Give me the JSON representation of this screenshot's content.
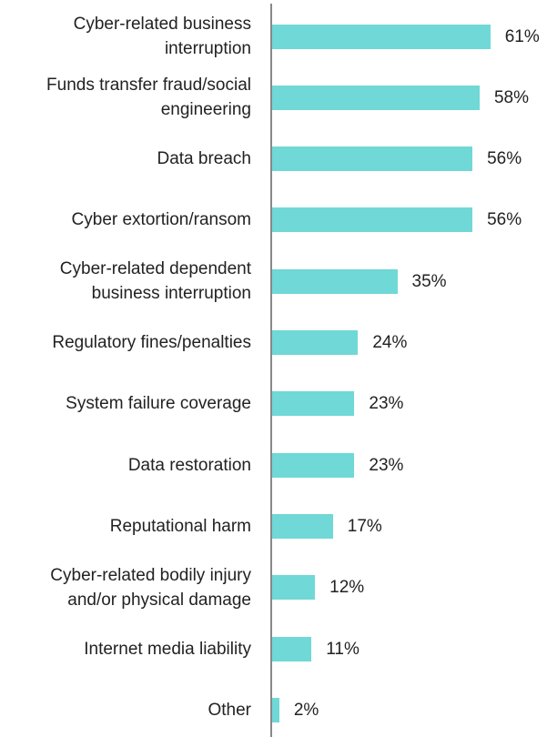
{
  "chart_data": {
    "type": "bar",
    "orientation": "horizontal",
    "categories": [
      "Cyber-related business interruption",
      "Funds transfer fraud/social engineering",
      "Data breach",
      "Cyber extortion/ransom",
      "Cyber-related dependent business interruption",
      "Regulatory fines/penalties",
      "System failure coverage",
      "Data restoration",
      "Reputational harm",
      "Cyber-related bodily injury and/or physical damage",
      "Internet media liability",
      "Other"
    ],
    "values": [
      61,
      58,
      56,
      56,
      35,
      24,
      23,
      23,
      17,
      12,
      11,
      2
    ],
    "value_labels": [
      "61%",
      "58%",
      "56%",
      "56%",
      "35%",
      "24%",
      "23%",
      "23%",
      "17%",
      "12%",
      "11%",
      "2%"
    ],
    "color": "#70d8d6"
  }
}
